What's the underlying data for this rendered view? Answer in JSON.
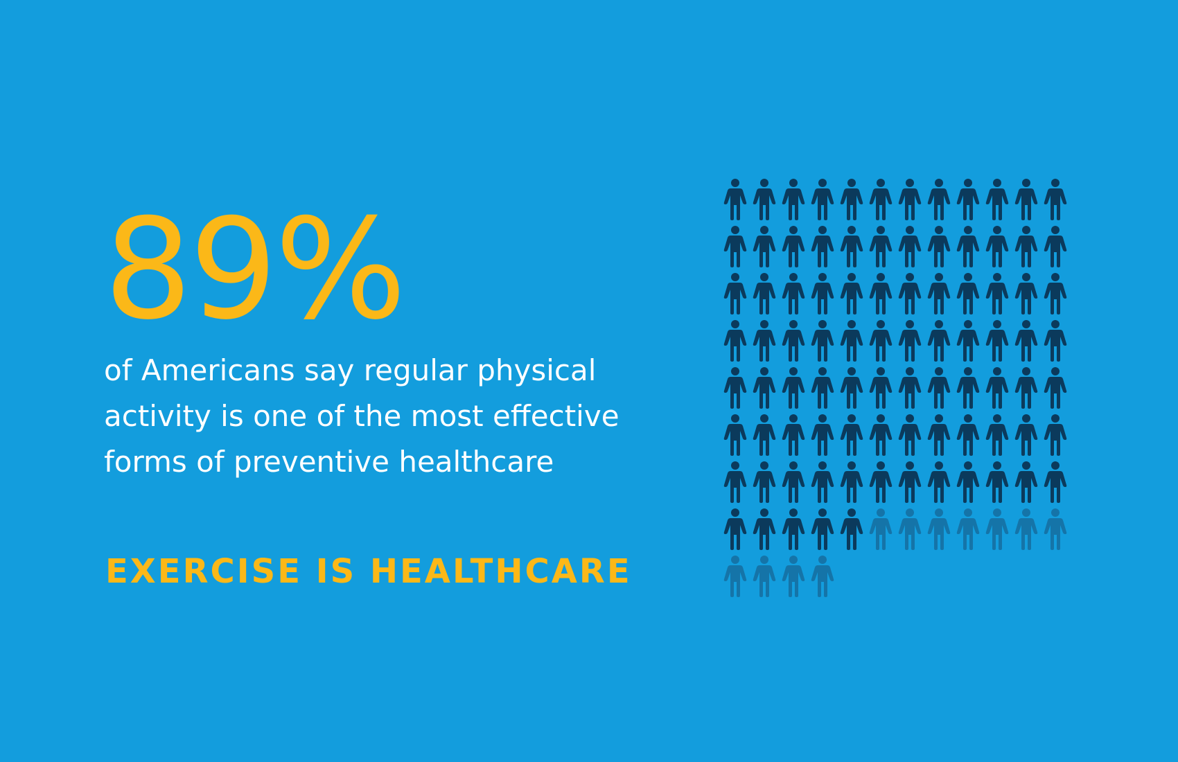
{
  "stat": {
    "value": "89%",
    "description": "of Americans say regular physical activity is one of the most effective forms of preventive healthcare"
  },
  "tagline": "EXERCISE IS HEALTHCARE",
  "pictograph": {
    "icon": "person-icon",
    "total": 100,
    "highlighted": 89,
    "columns": 12,
    "colors": {
      "background": "#139ddd",
      "highlighted": "#0b3a5c",
      "remaining": "#1574a8"
    }
  }
}
